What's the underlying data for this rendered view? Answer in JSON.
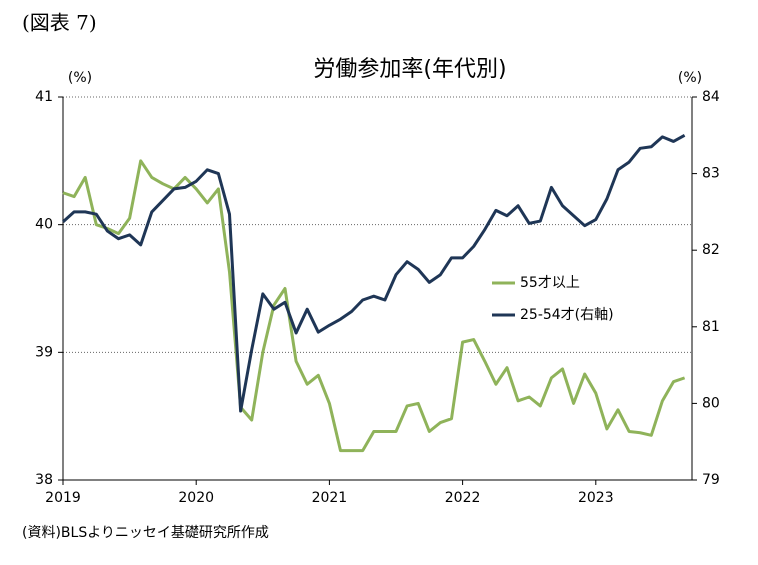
{
  "figure_label": "(図表 7)",
  "source": "(資料)BLSよりニッセイ基礎研究所作成",
  "chart_data": {
    "type": "line",
    "title": "労働参加率(年代別)",
    "y_label": "(%)",
    "y2_label": "(%)",
    "categories": [
      "2019",
      null,
      null,
      null,
      null,
      null,
      null,
      null,
      null,
      null,
      null,
      null,
      "2020",
      null,
      null,
      null,
      null,
      null,
      null,
      null,
      null,
      null,
      null,
      null,
      "2021",
      null,
      null,
      null,
      null,
      null,
      null,
      null,
      null,
      null,
      null,
      null,
      "2022",
      null,
      null,
      null,
      null,
      null,
      null,
      null,
      null,
      null,
      null,
      null,
      "2023",
      null,
      null,
      null,
      null,
      null,
      null,
      null,
      null
    ],
    "ylim": [
      38,
      41
    ],
    "yticks": [
      38,
      39,
      40,
      41
    ],
    "y2lim": [
      79,
      84
    ],
    "y2ticks": [
      79,
      80,
      81,
      82,
      83,
      84
    ],
    "grid": true,
    "series": [
      {
        "name": "55才以上",
        "color": "#8fb35a",
        "values": [
          40.25,
          40.22,
          40.37,
          40.0,
          39.97,
          39.93,
          40.05,
          40.5,
          40.37,
          40.32,
          40.28,
          40.37,
          40.28,
          40.17,
          40.28,
          39.63,
          38.57,
          38.47,
          39.0,
          39.37,
          39.5,
          38.93,
          38.75,
          38.82,
          38.6,
          38.23,
          38.23,
          38.23,
          38.38,
          38.38,
          38.38,
          38.58,
          38.6,
          38.38,
          38.45,
          38.48,
          39.08,
          39.1,
          38.93,
          38.75,
          38.88,
          38.62,
          38.65,
          38.58,
          38.8,
          38.87,
          38.6,
          38.83,
          38.68,
          38.4,
          38.55,
          38.38,
          38.37,
          38.35,
          38.62,
          38.77,
          38.8
        ]
      },
      {
        "name": "25-54才(右軸)",
        "color": "#1f3656",
        "axis": "y2",
        "values": [
          82.37,
          82.5,
          82.5,
          82.47,
          82.25,
          82.15,
          82.2,
          82.07,
          82.5,
          82.65,
          82.8,
          82.82,
          82.9,
          83.05,
          83.0,
          82.47,
          79.9,
          80.7,
          81.43,
          81.23,
          81.32,
          80.92,
          81.23,
          80.93,
          81.02,
          81.1,
          81.2,
          81.35,
          81.4,
          81.35,
          81.68,
          81.85,
          81.75,
          81.58,
          81.68,
          81.9,
          81.9,
          82.05,
          82.27,
          82.52,
          82.45,
          82.58,
          82.35,
          82.38,
          82.82,
          82.58,
          82.45,
          82.32,
          82.4,
          82.67,
          83.05,
          83.15,
          83.33,
          83.35,
          83.48,
          83.42,
          83.5
        ]
      }
    ]
  }
}
